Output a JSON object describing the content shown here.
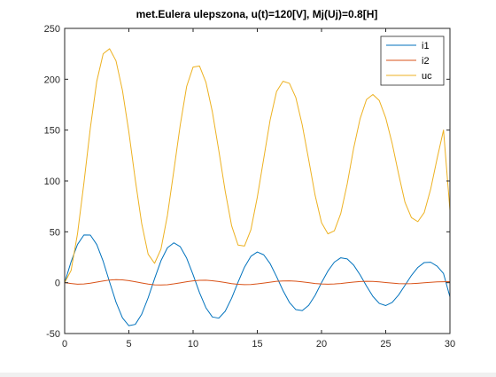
{
  "chart_data": {
    "type": "line",
    "title": "met.Eulera ulepszona, u(t)=120[V], Mj(Uj)=0.8[H]",
    "xlabel": "",
    "ylabel": "",
    "xlim": [
      0,
      30
    ],
    "ylim": [
      -50,
      250
    ],
    "x_ticks": [
      0,
      5,
      10,
      15,
      20,
      25,
      30
    ],
    "y_ticks": [
      -50,
      0,
      50,
      100,
      150,
      200,
      250
    ],
    "x_tick_labels": [
      "0",
      "5",
      "10",
      "15",
      "20",
      "25",
      "30"
    ],
    "y_tick_labels": [
      "-50",
      "0",
      "50",
      "100",
      "150",
      "200",
      "250"
    ],
    "grid": false,
    "legend_position": "top-right",
    "x": [
      0,
      0.5,
      1,
      1.5,
      2,
      2.5,
      3,
      3.5,
      4,
      4.5,
      5,
      5.5,
      6,
      6.5,
      7,
      7.5,
      8,
      8.5,
      9,
      9.5,
      10,
      10.5,
      11,
      11.5,
      12,
      12.5,
      13,
      13.5,
      14,
      14.5,
      15,
      15.5,
      16,
      16.5,
      17,
      17.5,
      18,
      18.5,
      19,
      19.5,
      20,
      20.5,
      21,
      21.5,
      22,
      22.5,
      23,
      23.5,
      24,
      24.5,
      25,
      25.5,
      26,
      26.5,
      27,
      27.5,
      28,
      28.5,
      29,
      29.5,
      30
    ],
    "series": [
      {
        "name": "i1",
        "color": "#0072BD",
        "values": [
          0,
          20.5,
          37.6,
          46.9,
          46.8,
          37.5,
          21.0,
          0.6,
          -19.2,
          -34.6,
          -42.3,
          -41.0,
          -31.0,
          -14.9,
          3.9,
          21.6,
          34.3,
          39.2,
          35.4,
          24.1,
          7.8,
          -9.8,
          -24.7,
          -33.7,
          -34.9,
          -28.1,
          -15.3,
          0.4,
          15.2,
          25.9,
          30.2,
          27.4,
          18.7,
          6.0,
          -7.7,
          -19.4,
          -26.5,
          -27.4,
          -22.3,
          -12.5,
          0,
          11.5,
          20.2,
          24.5,
          23.4,
          17.3,
          7.8,
          -3.2,
          -13.5,
          -20.4,
          -22.5,
          -19.4,
          -12.1,
          -2.6,
          7.1,
          15.0,
          19.8,
          20.1,
          16.2,
          9.0,
          -14.0
        ]
      },
      {
        "name": "i2",
        "color": "#D95319",
        "values": [
          0,
          -0.8,
          -1.5,
          -1.3,
          -0.5,
          0.6,
          1.7,
          2.6,
          3.0,
          2.8,
          2.0,
          0.9,
          -0.3,
          -1.4,
          -2.1,
          -2.3,
          -2.0,
          -1.2,
          -0.2,
          0.9,
          1.8,
          2.3,
          2.4,
          1.9,
          1.1,
          0.1,
          -0.9,
          -1.6,
          -1.9,
          -1.8,
          -1.2,
          -0.4,
          0.5,
          1.3,
          1.7,
          1.8,
          1.4,
          0.8,
          0,
          -0.8,
          -1.3,
          -1.5,
          -1.3,
          -0.8,
          -0.1,
          0.6,
          1.1,
          1.3,
          1.2,
          0.8,
          0.2,
          -0.4,
          -0.9,
          -1.1,
          -1.0,
          -0.6,
          -0.1,
          0.4,
          0.8,
          0.9,
          1.0
        ]
      },
      {
        "name": "uc",
        "color": "#EDB120",
        "values": [
          0,
          12.0,
          48.0,
          98.0,
          152.0,
          198.0,
          225.0,
          230.0,
          218.0,
          189.0,
          148.0,
          101.0,
          58.0,
          28.0,
          19.0,
          33.0,
          66.0,
          110.0,
          155.0,
          193.0,
          212.0,
          213.0,
          197.0,
          168.0,
          130.0,
          90.0,
          56.0,
          37.0,
          36.0,
          52.0,
          84.0,
          122.0,
          160.0,
          188.0,
          198.0,
          196.0,
          182.0,
          155.0,
          121.0,
          86.0,
          59.0,
          48.0,
          51.0,
          68.0,
          97.0,
          132.0,
          161.0,
          180.0,
          185.0,
          179.0,
          162.0,
          137.0,
          107.0,
          79.0,
          64.0,
          60.0,
          69.0,
          92.0,
          122.0,
          150.0,
          71.0
        ]
      }
    ]
  }
}
